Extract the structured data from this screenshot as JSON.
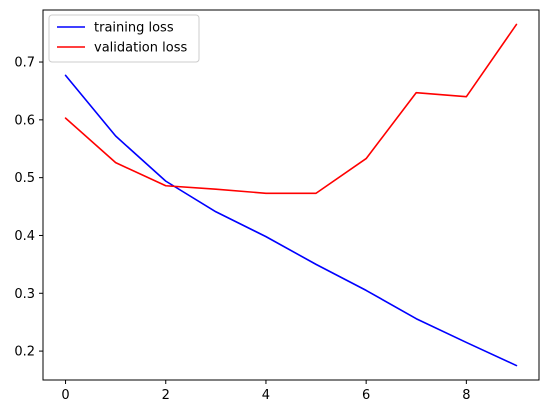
{
  "chart_data": {
    "type": "line",
    "title": "",
    "xlabel": "",
    "ylabel": "",
    "x": [
      0,
      1,
      2,
      3,
      4,
      5,
      6,
      7,
      8,
      9
    ],
    "series": [
      {
        "name": "training loss",
        "color": "#0000ff",
        "values": [
          0.677,
          0.572,
          0.494,
          0.441,
          0.398,
          0.35,
          0.305,
          0.256,
          0.215,
          0.175
        ]
      },
      {
        "name": "validation loss",
        "color": "#ff0000",
        "values": [
          0.603,
          0.526,
          0.486,
          0.48,
          0.473,
          0.473,
          0.533,
          0.647,
          0.64,
          0.765
        ]
      }
    ],
    "xlim": [
      -0.45,
      9.45
    ],
    "ylim": [
      0.15,
      0.79
    ],
    "x_ticks": [
      0,
      2,
      4,
      6,
      8
    ],
    "x_tick_labels": [
      "0",
      "2",
      "4",
      "6",
      "8"
    ],
    "y_ticks": [
      0.2,
      0.3,
      0.4,
      0.5,
      0.6,
      0.7
    ],
    "y_tick_labels": [
      "0.2",
      "0.3",
      "0.4",
      "0.5",
      "0.6",
      "0.7"
    ],
    "grid": false,
    "legend_position": "upper-left"
  }
}
